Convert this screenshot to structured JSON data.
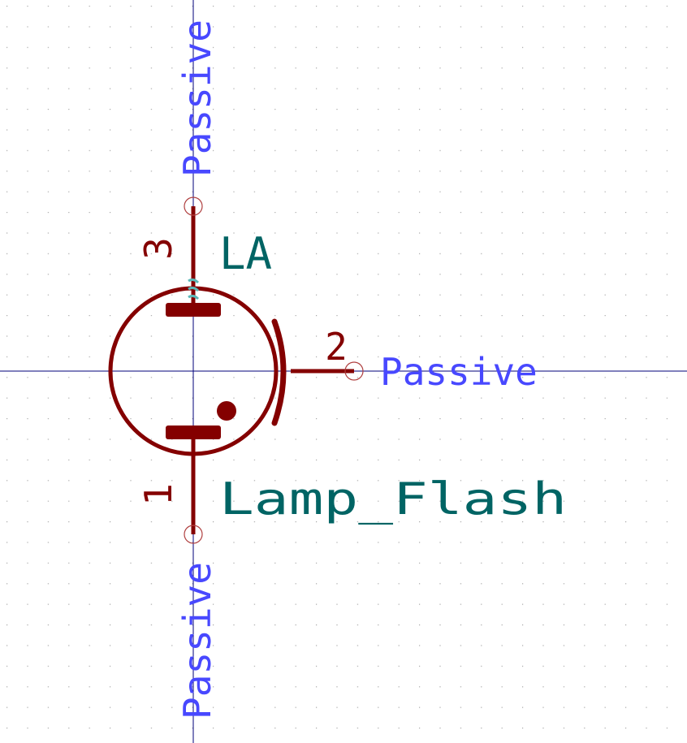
{
  "symbol": {
    "reference": "LA",
    "value": "Lamp_Flash"
  },
  "pins": [
    {
      "number": "3",
      "type": "Passive"
    },
    {
      "number": "2",
      "type": "Passive"
    },
    {
      "number": "1",
      "type": "Passive"
    }
  ],
  "colors": {
    "body": "#840000",
    "field": "#006464",
    "pin_type": "#4848ff",
    "crosshair": "#00007a",
    "grid_dot": "#a8a8a8",
    "pin_hint": "#5bb8b8"
  }
}
